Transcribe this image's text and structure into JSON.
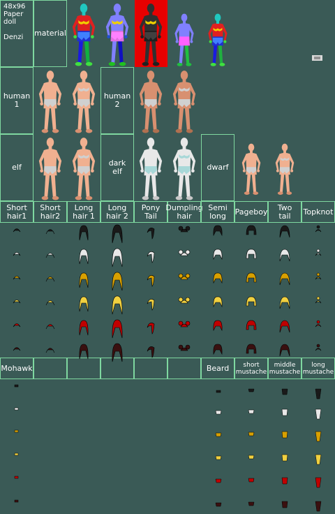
{
  "header": {
    "text": "48x96\nPaper\ndoll\n\nDenzi"
  },
  "labels": {
    "material": "material",
    "human1": "human\n1",
    "human2": "human\n2",
    "elf": "elf",
    "darkelf": "dark\nelf",
    "dwarf": "dwarf"
  },
  "hair_labels": [
    "Short\nhair1",
    "Short\nhair2",
    "Long\nhair 1",
    "Long\nhair 2",
    "Pony\nTail",
    "Dumpling\nhair",
    "Semi\nlong",
    "Pageboy",
    "Two\ntail",
    "Topknot"
  ],
  "facial_labels": [
    "Mohawk",
    "",
    "",
    "",
    "",
    "",
    "Beard",
    "short\nmustache",
    "middle\nmustache",
    "long\nmustache"
  ],
  "colors": {
    "background": "#3a5a56",
    "grid": "#7fd8a0",
    "highlight": "#e80000",
    "hair_tints": [
      "#1a1a1a",
      "#e8e8e8",
      "#d8a000",
      "#f0d040",
      "#c00000",
      "#3a1010"
    ]
  }
}
